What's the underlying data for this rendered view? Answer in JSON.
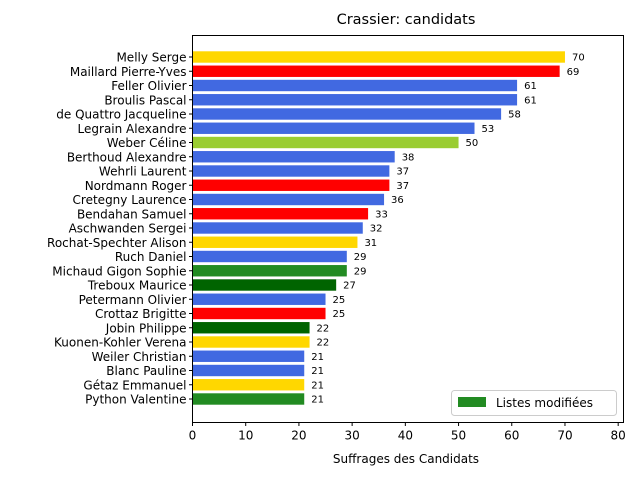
{
  "chart_data": {
    "type": "bar",
    "orientation": "horizontal",
    "title": "Crassier: candidats",
    "xlabel": "Suffrages des Candidats",
    "ylabel": "",
    "xlim": [
      0,
      81
    ],
    "xticks": [
      0,
      10,
      20,
      30,
      40,
      50,
      60,
      70,
      80
    ],
    "grid": false,
    "legend": {
      "placement": "lower-right",
      "entries": [
        {
          "label": "Listes modifiées",
          "color": "#228b22"
        }
      ]
    },
    "categories": [
      "Melly Serge",
      "Maillard Pierre-Yves",
      "Feller Olivier",
      "Broulis Pascal",
      "de Quattro Jacqueline",
      "Legrain Alexandre",
      "Weber Céline",
      "Berthoud Alexandre",
      "Wehrli Laurent",
      "Nordmann Roger",
      "Cretegny Laurence",
      "Bendahan Samuel",
      "Aschwanden Sergei",
      "Rochat-Spechter Alison",
      "Ruch Daniel",
      "Michaud Gigon Sophie",
      "Treboux Maurice",
      "Petermann Olivier",
      "Crottaz Brigitte",
      "Jobin Philippe",
      "Kuonen-Kohler Verena",
      "Weiler Christian",
      "Blanc Pauline",
      "Gétaz Emmanuel",
      "Python Valentine"
    ],
    "values": [
      70,
      69,
      61,
      61,
      58,
      53,
      50,
      38,
      37,
      37,
      36,
      33,
      32,
      31,
      29,
      29,
      27,
      25,
      25,
      22,
      22,
      21,
      21,
      21,
      21
    ],
    "colors": [
      "#ffd700",
      "#ff0000",
      "#4169e1",
      "#4169e1",
      "#4169e1",
      "#4169e1",
      "#9acd32",
      "#4169e1",
      "#4169e1",
      "#ff0000",
      "#4169e1",
      "#ff0000",
      "#4169e1",
      "#ffd700",
      "#4169e1",
      "#228b22",
      "#006400",
      "#4169e1",
      "#ff0000",
      "#006400",
      "#ffd700",
      "#4169e1",
      "#4169e1",
      "#ffd700",
      "#228b22"
    ]
  }
}
